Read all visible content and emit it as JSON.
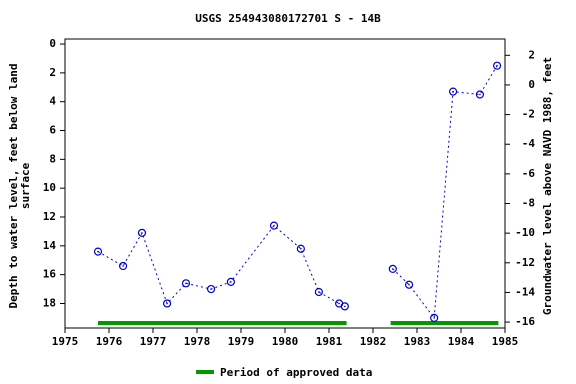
{
  "chart_data": {
    "type": "line",
    "title": "USGS 254943080172701 S  -  14B",
    "y_label": [
      "Depth to water level, feet below land",
      "surface"
    ],
    "y2_label": "Groundwater level above NAVD 1988, feet",
    "xlim": [
      1975,
      1985
    ],
    "xticks": [
      1975,
      1976,
      1977,
      1978,
      1979,
      1980,
      1981,
      1982,
      1983,
      1984,
      1985
    ],
    "ylim": [
      19.7,
      -0.35
    ],
    "yticks": [
      0,
      2,
      4,
      6,
      8,
      10,
      12,
      14,
      16,
      18
    ],
    "y2lim": [
      -16.4,
      3.1
    ],
    "y2ticks": [
      2,
      0,
      -2,
      -4,
      -6,
      -8,
      -10,
      -12,
      -14,
      -16
    ],
    "x": [
      1975.75,
      1976.32,
      1976.75,
      1977.32,
      1977.75,
      1978.32,
      1978.77,
      1979.75,
      1980.36,
      1980.77,
      1981.23,
      1981.36,
      null,
      1982.45,
      1982.82,
      1983.39,
      1983.82,
      1984.43,
      1984.82
    ],
    "series": [
      {
        "name": "Depth to water level",
        "color": "#0000cc",
        "values": [
          14.4,
          15.4,
          13.1,
          18.0,
          16.6,
          17.0,
          16.5,
          12.6,
          14.2,
          17.2,
          18.0,
          18.2,
          null,
          15.6,
          16.7,
          19.0,
          3.3,
          3.5,
          1.5
        ]
      }
    ],
    "approved_periods": [
      [
        1975.75,
        1981.4
      ],
      [
        1982.4,
        1984.85
      ]
    ],
    "approved_color": "#009900",
    "approved_label": "Period of approved data"
  }
}
